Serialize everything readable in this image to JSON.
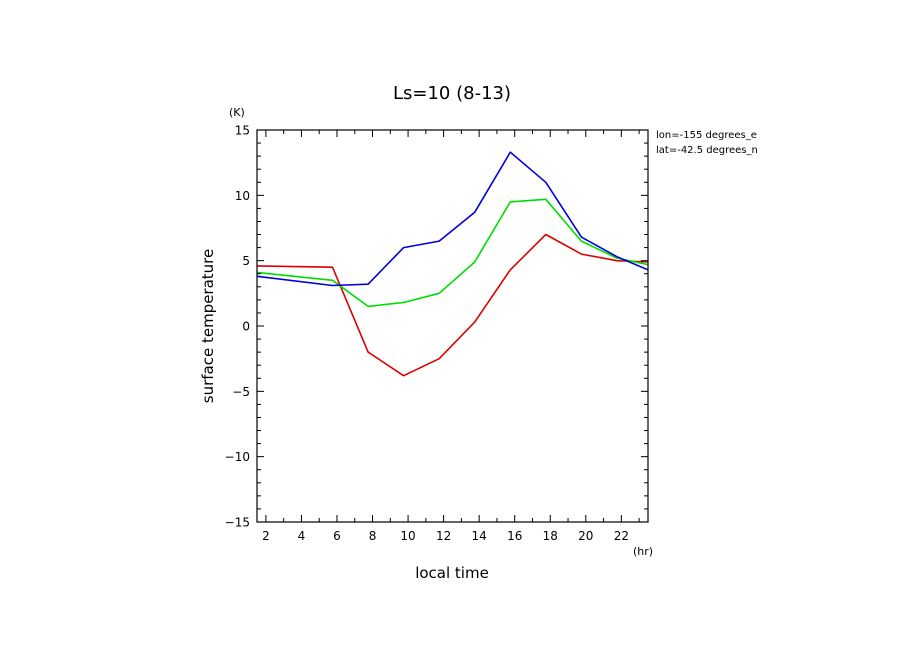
{
  "chart_data": {
    "type": "line",
    "title": "Ls=10 (8-13)",
    "xlabel": "local time",
    "ylabel": "surface temperature",
    "x_unit": "(hr)",
    "y_unit": "(K)",
    "xlim": [
      1.5,
      23.5
    ],
    "ylim": [
      -15,
      15
    ],
    "x_ticks": [
      2,
      4,
      6,
      8,
      10,
      12,
      14,
      16,
      18,
      20,
      22
    ],
    "y_ticks": [
      -15,
      -10,
      -5,
      0,
      5,
      10,
      15
    ],
    "annotations": [
      "lon=-155 degrees_e",
      "lat=-42.5 degrees_n"
    ],
    "grid": false,
    "x": [
      1.5,
      5.75,
      7.75,
      9.75,
      11.75,
      13.75,
      15.75,
      17.75,
      19.75,
      21.75,
      23.5
    ],
    "series": [
      {
        "color": "#dd0000",
        "values": [
          4.6,
          4.5,
          -2.0,
          -3.8,
          -2.5,
          0.3,
          4.3,
          7.0,
          5.5,
          5.0,
          4.9
        ]
      },
      {
        "color": "#00dd00",
        "values": [
          4.1,
          3.5,
          1.5,
          1.8,
          2.5,
          4.9,
          9.5,
          9.7,
          6.5,
          5.2,
          4.7
        ]
      },
      {
        "color": "#0000dd",
        "values": [
          3.8,
          3.1,
          3.2,
          6.0,
          6.5,
          8.7,
          13.3,
          11.0,
          6.8,
          5.3,
          4.3
        ]
      }
    ]
  }
}
